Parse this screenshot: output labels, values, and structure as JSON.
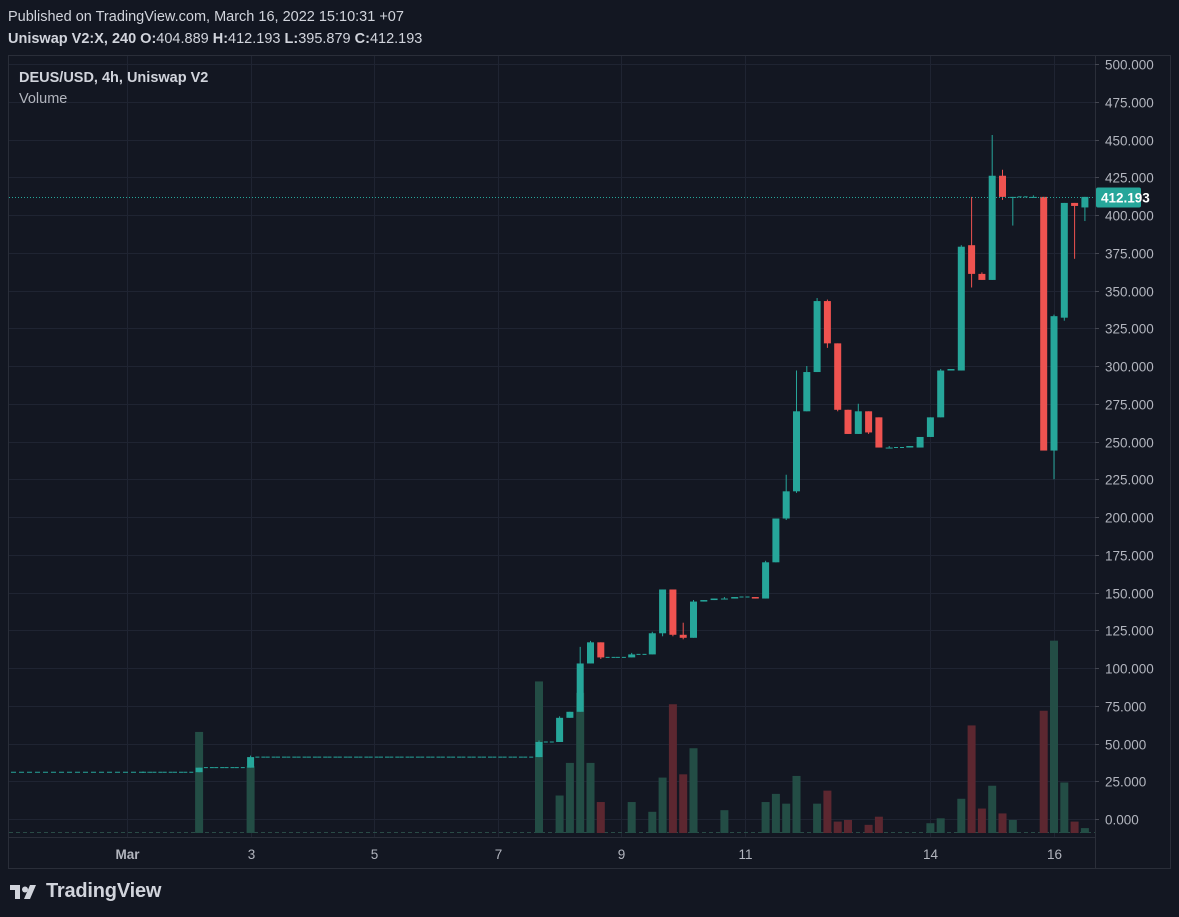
{
  "header": {
    "published": "Published on TradingView.com, March 16, 2022 15:10:31 +07",
    "symbol_prefix": "Uniswap V2:X, 240",
    "o_label": "O:",
    "o_value": "404.889",
    "h_label": "H:",
    "h_value": "412.193",
    "l_label": "L:",
    "l_value": "395.879",
    "c_label": "C:",
    "c_value": "412.193"
  },
  "legend": {
    "title": "DEUS/USD, 4h, Uniswap V2",
    "volume_label": "Volume"
  },
  "brand": {
    "name": "TradingView"
  },
  "colors": {
    "background": "#131722",
    "up": "#26a69a",
    "down": "#ef5350",
    "volume_up": "#234d45",
    "volume_down": "#5c2730",
    "grid": "#1f2432",
    "last_price_line": "#26a69a"
  },
  "chart_data": {
    "type": "candlestick",
    "title": "DEUS/USD, 4h, Uniswap V2",
    "y_ticks": [
      "500.000",
      "475.000",
      "450.000",
      "425.000",
      "400.000",
      "375.000",
      "350.000",
      "325.000",
      "300.000",
      "275.000",
      "250.000",
      "225.000",
      "200.000",
      "175.000",
      "150.000",
      "125.000",
      "100.000",
      "75.000",
      "50.000",
      "25.000",
      "0.000"
    ],
    "ylim": [
      -10,
      505
    ],
    "x_labels": [
      {
        "index": 0,
        "label": "Mar"
      },
      {
        "index": 12,
        "label": "3"
      },
      {
        "index": 24,
        "label": "5"
      },
      {
        "index": 36,
        "label": "7"
      },
      {
        "index": 48,
        "label": "9"
      },
      {
        "index": 60,
        "label": "11"
      },
      {
        "index": 78,
        "label": "14"
      },
      {
        "index": 90,
        "label": "16"
      }
    ],
    "last_price": 412.193,
    "last_price_label": "412.193",
    "grid": true,
    "candles": [
      {
        "i": 2,
        "o": 31,
        "h": 31,
        "l": 31,
        "c": 31,
        "v": 0
      },
      {
        "i": 3,
        "o": 31,
        "h": 31,
        "l": 31,
        "c": 31,
        "v": 0
      },
      {
        "i": 4,
        "o": 31,
        "h": 31,
        "l": 31,
        "c": 31,
        "v": 0
      },
      {
        "i": 5,
        "o": 31,
        "h": 31,
        "l": 31,
        "c": 31,
        "v": 0
      },
      {
        "i": 6,
        "o": 31,
        "h": 31,
        "l": 31,
        "c": 31,
        "v": 0
      },
      {
        "i": 7,
        "o": 31,
        "h": 34,
        "l": 31,
        "c": 34,
        "v": 62
      },
      {
        "i": 8,
        "o": 34,
        "h": 34,
        "l": 34,
        "c": 34,
        "v": 0
      },
      {
        "i": 9,
        "o": 34,
        "h": 34,
        "l": 34,
        "c": 34,
        "v": 0
      },
      {
        "i": 10,
        "o": 34,
        "h": 34,
        "l": 34,
        "c": 34,
        "v": 0
      },
      {
        "i": 11,
        "o": 34,
        "h": 34,
        "l": 34,
        "c": 34,
        "v": 0
      },
      {
        "i": 12,
        "o": 34,
        "h": 42,
        "l": 34,
        "c": 41,
        "v": 41
      },
      {
        "i": 13,
        "o": 41,
        "h": 41,
        "l": 41,
        "c": 41,
        "v": 0
      },
      {
        "i": 14,
        "o": 41,
        "h": 41,
        "l": 41,
        "c": 41,
        "v": 0
      },
      {
        "i": 15,
        "o": 41,
        "h": 41,
        "l": 41,
        "c": 41,
        "v": 0
      },
      {
        "i": 16,
        "o": 41,
        "h": 41,
        "l": 41,
        "c": 41,
        "v": 0
      },
      {
        "i": 17,
        "o": 41,
        "h": 41,
        "l": 41,
        "c": 41,
        "v": 0
      },
      {
        "i": 18,
        "o": 41,
        "h": 41,
        "l": 41,
        "c": 41,
        "v": 0
      },
      {
        "i": 19,
        "o": 41,
        "h": 41,
        "l": 41,
        "c": 41,
        "v": 0
      },
      {
        "i": 20,
        "o": 41,
        "h": 41,
        "l": 41,
        "c": 41,
        "v": 0
      },
      {
        "i": 21,
        "o": 41,
        "h": 41,
        "l": 41,
        "c": 41,
        "v": 0
      },
      {
        "i": 22,
        "o": 41,
        "h": 41,
        "l": 41,
        "c": 41,
        "v": 0
      },
      {
        "i": 23,
        "o": 41,
        "h": 41,
        "l": 41,
        "c": 41,
        "v": 0
      },
      {
        "i": 24,
        "o": 41,
        "h": 41,
        "l": 41,
        "c": 41,
        "v": 0
      },
      {
        "i": 25,
        "o": 41,
        "h": 41,
        "l": 41,
        "c": 41,
        "v": 0
      },
      {
        "i": 26,
        "o": 41,
        "h": 41,
        "l": 41,
        "c": 41,
        "v": 0
      },
      {
        "i": 27,
        "o": 41,
        "h": 41,
        "l": 41,
        "c": 41,
        "v": 0
      },
      {
        "i": 28,
        "o": 41,
        "h": 41,
        "l": 41,
        "c": 41,
        "v": 0
      },
      {
        "i": 29,
        "o": 41,
        "h": 41,
        "l": 41,
        "c": 41,
        "v": 0
      },
      {
        "i": 30,
        "o": 41,
        "h": 41,
        "l": 41,
        "c": 41,
        "v": 0
      },
      {
        "i": 31,
        "o": 41,
        "h": 41,
        "l": 41,
        "c": 41,
        "v": 0
      },
      {
        "i": 32,
        "o": 41,
        "h": 41,
        "l": 41,
        "c": 41,
        "v": 0
      },
      {
        "i": 33,
        "o": 41,
        "h": 41,
        "l": 41,
        "c": 41,
        "v": 0
      },
      {
        "i": 34,
        "o": 41,
        "h": 41,
        "l": 41,
        "c": 41,
        "v": 0
      },
      {
        "i": 35,
        "o": 41,
        "h": 41,
        "l": 41,
        "c": 41,
        "v": 0
      },
      {
        "i": 36,
        "o": 41,
        "h": 41,
        "l": 41,
        "c": 41,
        "v": 0
      },
      {
        "i": 37,
        "o": 41,
        "h": 41,
        "l": 41,
        "c": 41,
        "v": 0
      },
      {
        "i": 38,
        "o": 41,
        "h": 41,
        "l": 41,
        "c": 41,
        "v": 0
      },
      {
        "i": 39,
        "o": 41,
        "h": 41,
        "l": 41,
        "c": 41,
        "v": 0
      },
      {
        "i": 40,
        "o": 41,
        "h": 52,
        "l": 41,
        "c": 51,
        "v": 93
      },
      {
        "i": 41,
        "o": 51,
        "h": 51,
        "l": 51,
        "c": 51,
        "v": 0
      },
      {
        "i": 42,
        "o": 51,
        "h": 68,
        "l": 51,
        "c": 67,
        "v": 23
      },
      {
        "i": 43,
        "o": 67,
        "h": 71,
        "l": 67,
        "c": 71,
        "v": 43
      },
      {
        "i": 44,
        "o": 71,
        "h": 114,
        "l": 71,
        "c": 103,
        "v": 86
      },
      {
        "i": 45,
        "o": 103,
        "h": 118,
        "l": 103,
        "c": 117,
        "v": 43
      },
      {
        "i": 46,
        "o": 117,
        "h": 117,
        "l": 106,
        "c": 107,
        "v": 19
      },
      {
        "i": 47,
        "o": 107,
        "h": 107,
        "l": 107,
        "c": 107,
        "v": 0
      },
      {
        "i": 48,
        "o": 107,
        "h": 107,
        "l": 107,
        "c": 107,
        "v": 0
      },
      {
        "i": 49,
        "o": 107,
        "h": 110,
        "l": 107,
        "c": 109,
        "v": 19
      },
      {
        "i": 50,
        "o": 109,
        "h": 109,
        "l": 109,
        "c": 109,
        "v": 0
      },
      {
        "i": 51,
        "o": 109,
        "h": 124,
        "l": 109,
        "c": 123,
        "v": 13
      },
      {
        "i": 52,
        "o": 123,
        "h": 152,
        "l": 121,
        "c": 152,
        "v": 34
      },
      {
        "i": 53,
        "o": 152,
        "h": 152,
        "l": 121,
        "c": 122,
        "v": 79
      },
      {
        "i": 54,
        "o": 122,
        "h": 130,
        "l": 119,
        "c": 120,
        "v": 36
      },
      {
        "i": 55,
        "o": 120,
        "h": 145,
        "l": 120,
        "c": 144,
        "v": 52
      },
      {
        "i": 56,
        "o": 144,
        "h": 145,
        "l": 144,
        "c": 145,
        "v": 0
      },
      {
        "i": 57,
        "o": 145,
        "h": 146,
        "l": 145,
        "c": 146,
        "v": 0
      },
      {
        "i": 58,
        "o": 146,
        "h": 147,
        "l": 146,
        "c": 146,
        "v": 14
      },
      {
        "i": 59,
        "o": 146,
        "h": 147,
        "l": 146,
        "c": 147,
        "v": 0
      },
      {
        "i": 60,
        "o": 147,
        "h": 147,
        "l": 147,
        "c": 147,
        "v": 0
      },
      {
        "i": 61,
        "o": 147,
        "h": 147,
        "l": 146,
        "c": 146,
        "v": 0
      },
      {
        "i": 62,
        "o": 146,
        "h": 171,
        "l": 146,
        "c": 170,
        "v": 19
      },
      {
        "i": 63,
        "o": 170,
        "h": 199,
        "l": 170,
        "c": 199,
        "v": 24
      },
      {
        "i": 64,
        "o": 199,
        "h": 228,
        "l": 198,
        "c": 217,
        "v": 18
      },
      {
        "i": 65,
        "o": 217,
        "h": 297,
        "l": 216,
        "c": 270,
        "v": 35
      },
      {
        "i": 66,
        "o": 270,
        "h": 300,
        "l": 270,
        "c": 296,
        "v": 0
      },
      {
        "i": 67,
        "o": 296,
        "h": 345,
        "l": 296,
        "c": 343,
        "v": 18
      },
      {
        "i": 68,
        "o": 343,
        "h": 344,
        "l": 312,
        "c": 315,
        "v": 26
      },
      {
        "i": 69,
        "o": 315,
        "h": 315,
        "l": 270,
        "c": 271,
        "v": 7
      },
      {
        "i": 70,
        "o": 271,
        "h": 271,
        "l": 255,
        "c": 255,
        "v": 8
      },
      {
        "i": 71,
        "o": 255,
        "h": 275,
        "l": 255,
        "c": 270,
        "v": 0
      },
      {
        "i": 72,
        "o": 270,
        "h": 270,
        "l": 255,
        "c": 256,
        "v": 5
      },
      {
        "i": 73,
        "o": 266,
        "h": 266,
        "l": 246,
        "c": 246,
        "v": 10
      },
      {
        "i": 74,
        "o": 246,
        "h": 247,
        "l": 246,
        "c": 246,
        "v": 0
      },
      {
        "i": 75,
        "o": 246,
        "h": 246,
        "l": 246,
        "c": 246,
        "v": 0
      },
      {
        "i": 76,
        "o": 246,
        "h": 247,
        "l": 246,
        "c": 247,
        "v": 0
      },
      {
        "i": 77,
        "o": 246,
        "h": 253,
        "l": 246,
        "c": 253,
        "v": 0
      },
      {
        "i": 78,
        "o": 253,
        "h": 266,
        "l": 253,
        "c": 266,
        "v": 6
      },
      {
        "i": 79,
        "o": 266,
        "h": 298,
        "l": 266,
        "c": 297,
        "v": 9
      },
      {
        "i": 80,
        "o": 297,
        "h": 298,
        "l": 297,
        "c": 298,
        "v": 0
      },
      {
        "i": 81,
        "o": 297,
        "h": 380,
        "l": 297,
        "c": 379,
        "v": 21
      },
      {
        "i": 82,
        "o": 380,
        "h": 412,
        "l": 352,
        "c": 361,
        "v": 66
      },
      {
        "i": 83,
        "o": 361,
        "h": 362,
        "l": 357,
        "c": 357,
        "v": 15
      },
      {
        "i": 84,
        "o": 357,
        "h": 453,
        "l": 357,
        "c": 426,
        "v": 29
      },
      {
        "i": 85,
        "o": 426,
        "h": 430,
        "l": 410,
        "c": 412,
        "v": 12
      },
      {
        "i": 86,
        "o": 412,
        "h": 412,
        "l": 393,
        "c": 412,
        "v": 8
      },
      {
        "i": 87,
        "o": 412,
        "h": 412,
        "l": 412,
        "c": 412,
        "v": 0
      },
      {
        "i": 88,
        "o": 412,
        "h": 413,
        "l": 412,
        "c": 412,
        "v": 0
      },
      {
        "i": 89,
        "o": 412,
        "h": 412,
        "l": 244,
        "c": 244,
        "v": 75
      },
      {
        "i": 90,
        "o": 244,
        "h": 334,
        "l": 225,
        "c": 333,
        "v": 118
      },
      {
        "i": 91,
        "o": 332,
        "h": 408,
        "l": 330,
        "c": 408,
        "v": 31
      },
      {
        "i": 92,
        "o": 408,
        "h": 408,
        "l": 371,
        "c": 406,
        "v": 7
      },
      {
        "i": 93,
        "o": 405,
        "h": 412,
        "l": 396,
        "c": 412,
        "v": 3
      }
    ]
  }
}
